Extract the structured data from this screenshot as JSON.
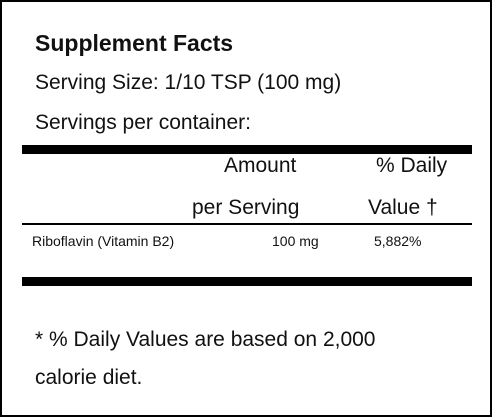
{
  "header": {
    "title": "Supplement Facts",
    "serving_size": "Serving Size:  1/10 TSP (100 mg)",
    "servings_per_container": "Servings per container:"
  },
  "table": {
    "headers": [
      [
        "Amount",
        "per Serving"
      ],
      [
        "% Daily",
        "Value †"
      ]
    ],
    "rows": [
      [
        "Riboflavin  (Vitamin B2)",
        "100 mg",
        "5,882%"
      ]
    ]
  },
  "footnote": [
    "* % Daily Values are based on 2,000",
    "calorie diet."
  ]
}
